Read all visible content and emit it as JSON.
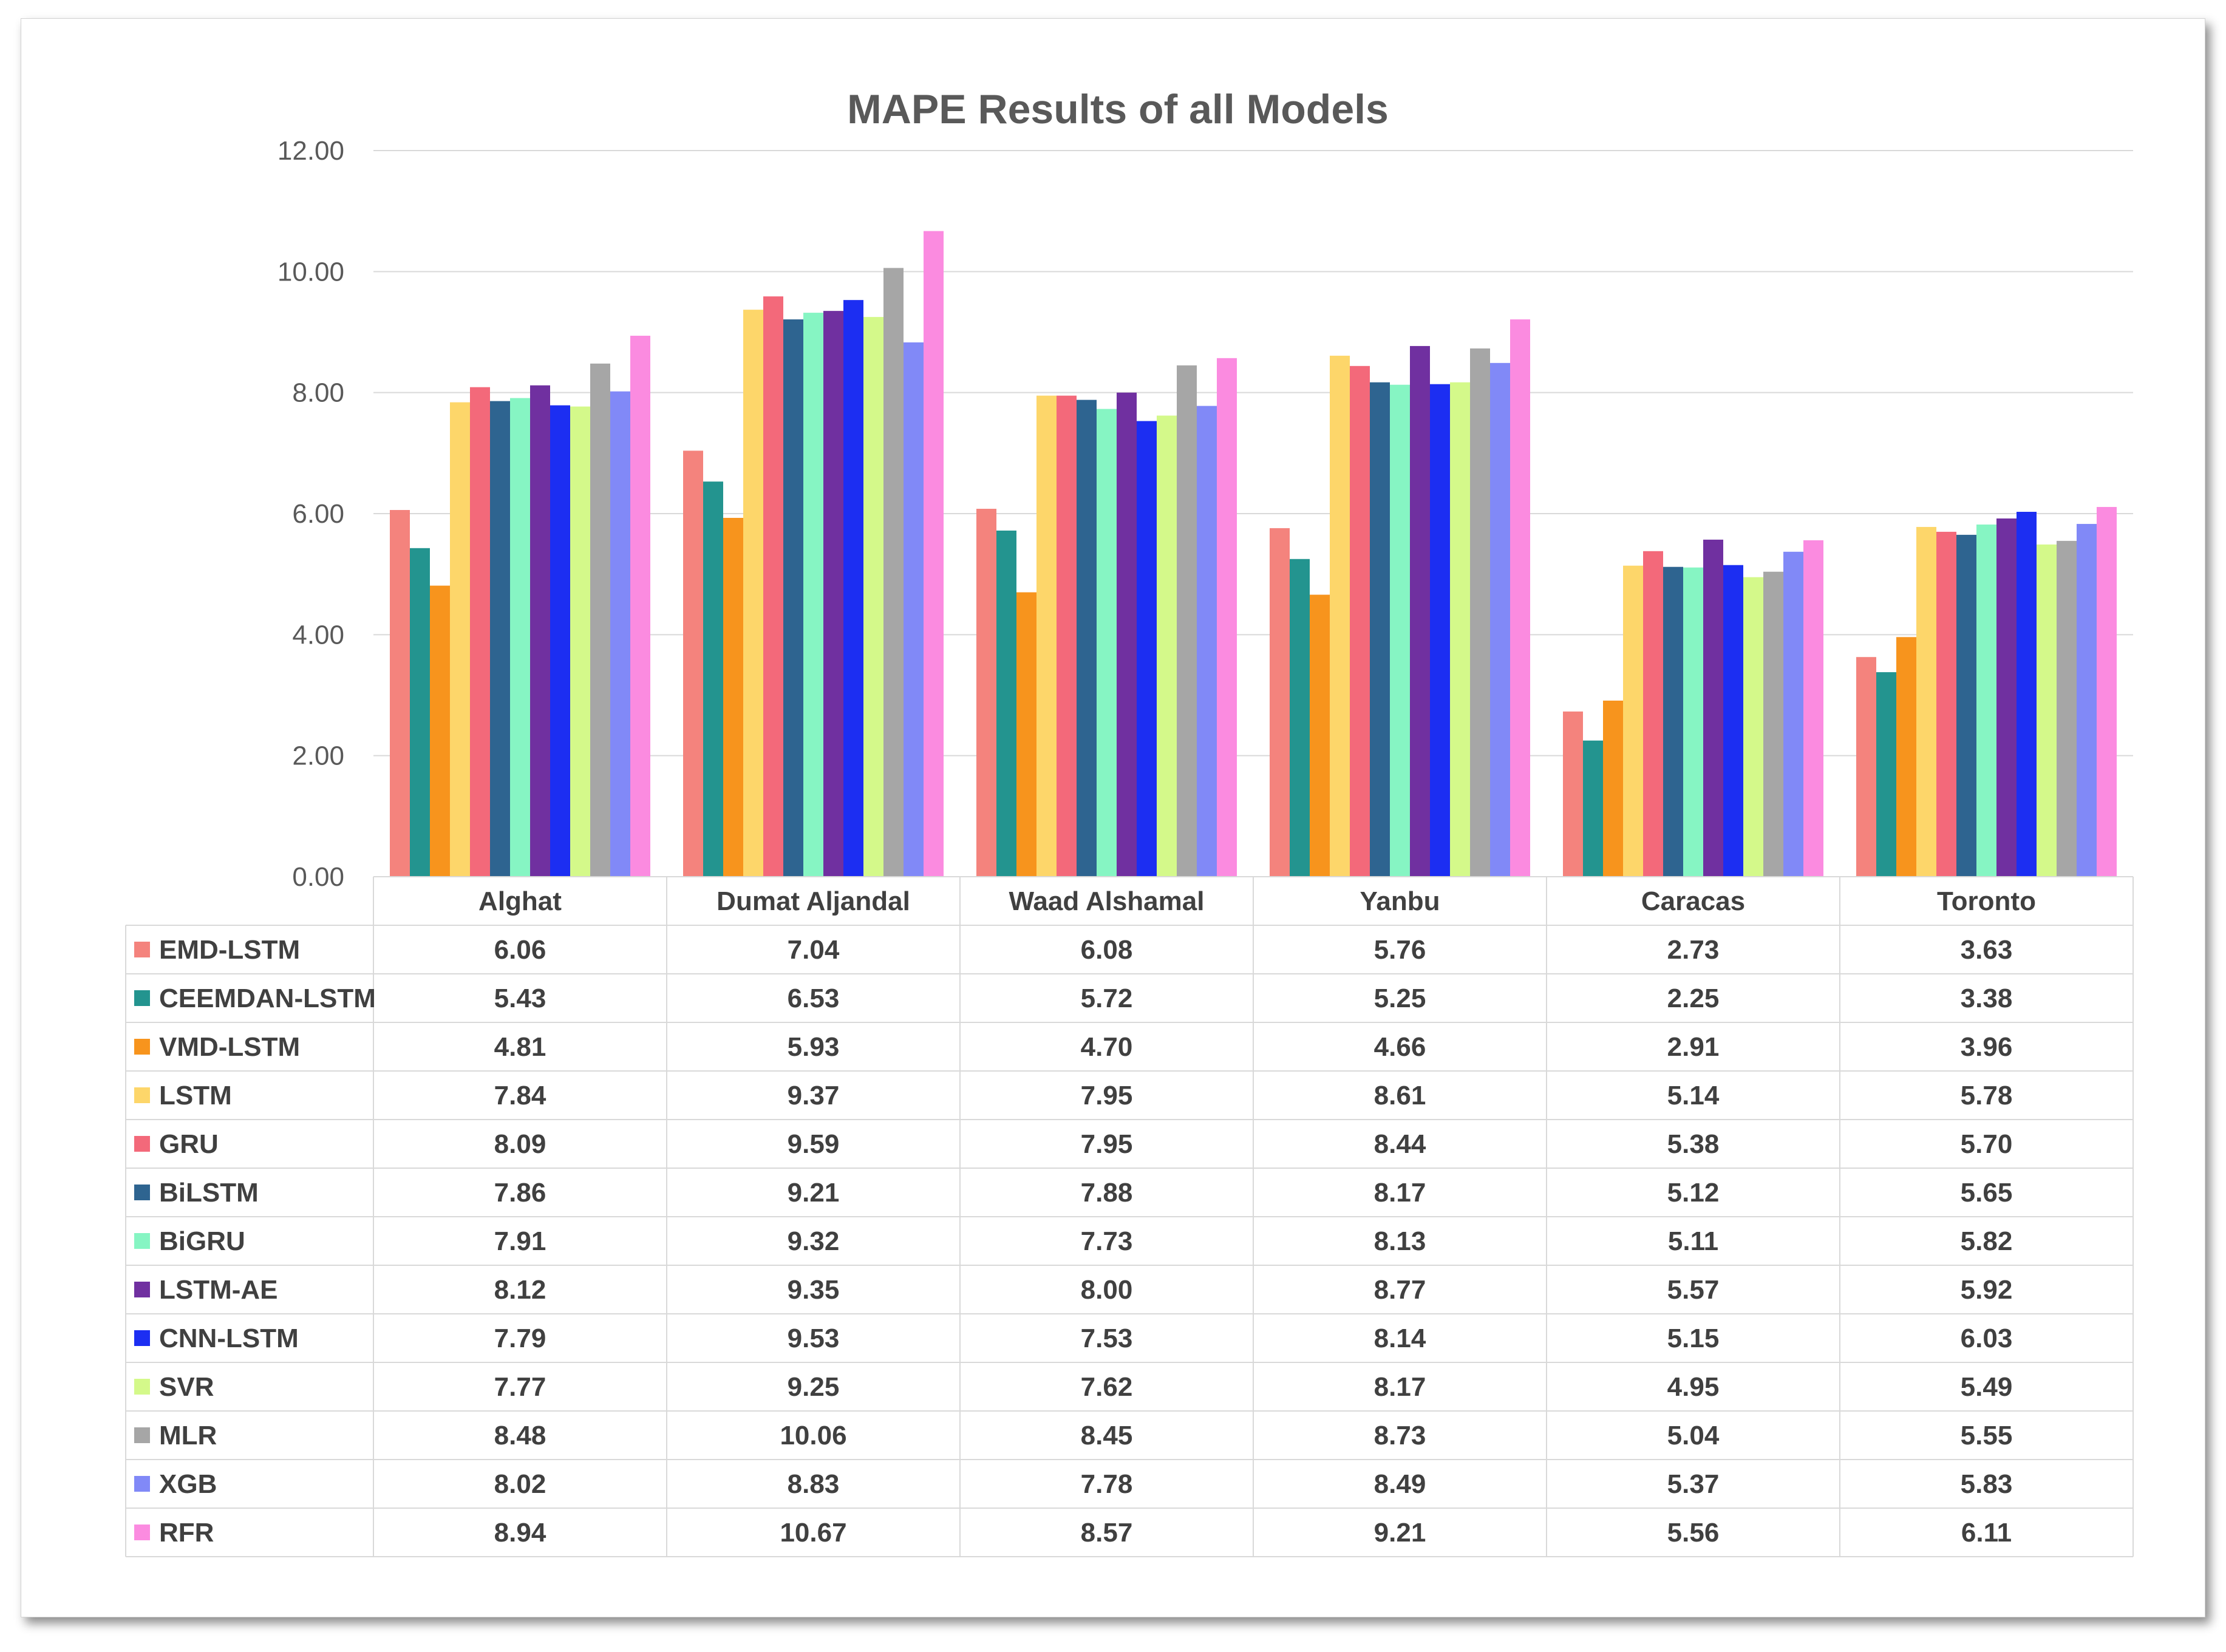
{
  "chart_data": {
    "type": "bar",
    "title": "MAPE Results of all Models",
    "xlabel": "",
    "ylabel": "",
    "ylim": [
      0,
      12
    ],
    "yticks": [
      "0.00",
      "2.00",
      "4.00",
      "6.00",
      "8.00",
      "10.00",
      "12.00"
    ],
    "grid": true,
    "legend": "data-table",
    "categories": [
      "Alghat",
      "Dumat Aljandal",
      "Waad Alshamal",
      "Yanbu",
      "Caracas",
      "Toronto"
    ],
    "series": [
      {
        "name": "EMD-LSTM",
        "color": "#F4837D",
        "values": [
          6.06,
          7.04,
          6.08,
          5.76,
          2.73,
          3.63
        ],
        "labels": [
          "6.06",
          "7.04",
          "6.08",
          "5.76",
          "2.73",
          "3.63"
        ]
      },
      {
        "name": "CEEMDAN-LSTM",
        "color": "#23948F",
        "values": [
          5.43,
          6.53,
          5.72,
          5.25,
          2.25,
          3.38
        ],
        "labels": [
          "5.43",
          "6.53",
          "5.72",
          "5.25",
          "2.25",
          "3.38"
        ]
      },
      {
        "name": "VMD-LSTM",
        "color": "#F7941D",
        "values": [
          4.81,
          5.93,
          4.7,
          4.66,
          2.91,
          3.96
        ],
        "labels": [
          "4.81",
          "5.93",
          "4.70",
          "4.66",
          "2.91",
          "3.96"
        ]
      },
      {
        "name": "LSTM",
        "color": "#FDD66A",
        "values": [
          7.84,
          9.37,
          7.95,
          8.61,
          5.14,
          5.78
        ],
        "labels": [
          "7.84",
          "9.37",
          "7.95",
          "8.61",
          "5.14",
          "5.78"
        ]
      },
      {
        "name": "GRU",
        "color": "#F3697A",
        "values": [
          8.09,
          9.59,
          7.95,
          8.44,
          5.38,
          5.7
        ],
        "labels": [
          "8.09",
          "9.59",
          "7.95",
          "8.44",
          "5.38",
          "5.70"
        ]
      },
      {
        "name": "BiLSTM",
        "color": "#2E6490",
        "values": [
          7.86,
          9.21,
          7.88,
          8.17,
          5.12,
          5.65
        ],
        "labels": [
          "7.86",
          "9.21",
          "7.88",
          "8.17",
          "5.12",
          "5.65"
        ]
      },
      {
        "name": "BiGRU",
        "color": "#86F5C3",
        "values": [
          7.91,
          9.32,
          7.73,
          8.13,
          5.11,
          5.82
        ],
        "labels": [
          "7.91",
          "9.32",
          "7.73",
          "8.13",
          "5.11",
          "5.82"
        ]
      },
      {
        "name": "LSTM-AE",
        "color": "#7030A0",
        "values": [
          8.12,
          9.35,
          8.0,
          8.77,
          5.57,
          5.92
        ],
        "labels": [
          "8.12",
          "9.35",
          "8.00",
          "8.77",
          "5.57",
          "5.92"
        ]
      },
      {
        "name": "CNN-LSTM",
        "color": "#1C2EF2",
        "values": [
          7.79,
          9.53,
          7.53,
          8.14,
          5.15,
          6.03
        ],
        "labels": [
          "7.79",
          "9.53",
          "7.53",
          "8.14",
          "5.15",
          "6.03"
        ]
      },
      {
        "name": "SVR",
        "color": "#D4F98A",
        "values": [
          7.77,
          9.25,
          7.62,
          8.17,
          4.95,
          5.49
        ],
        "labels": [
          "7.77",
          "9.25",
          "7.62",
          "8.17",
          "4.95",
          "5.49"
        ]
      },
      {
        "name": "MLR",
        "color": "#A6A6A6",
        "values": [
          8.48,
          10.06,
          8.45,
          8.73,
          5.04,
          5.55
        ],
        "labels": [
          "8.48",
          "10.06",
          "8.45",
          "8.73",
          "5.04",
          "5.55"
        ]
      },
      {
        "name": "XGB",
        "color": "#8189F7",
        "values": [
          8.02,
          8.83,
          7.78,
          8.49,
          5.37,
          5.83
        ],
        "labels": [
          "8.02",
          "8.83",
          "7.78",
          "8.49",
          "5.37",
          "5.83"
        ]
      },
      {
        "name": "RFR",
        "color": "#FB8BE0",
        "values": [
          8.94,
          10.67,
          8.57,
          9.21,
          5.56,
          6.11
        ],
        "labels": [
          "8.94",
          "10.67",
          "8.57",
          "9.21",
          "5.56",
          "6.11"
        ]
      }
    ]
  }
}
